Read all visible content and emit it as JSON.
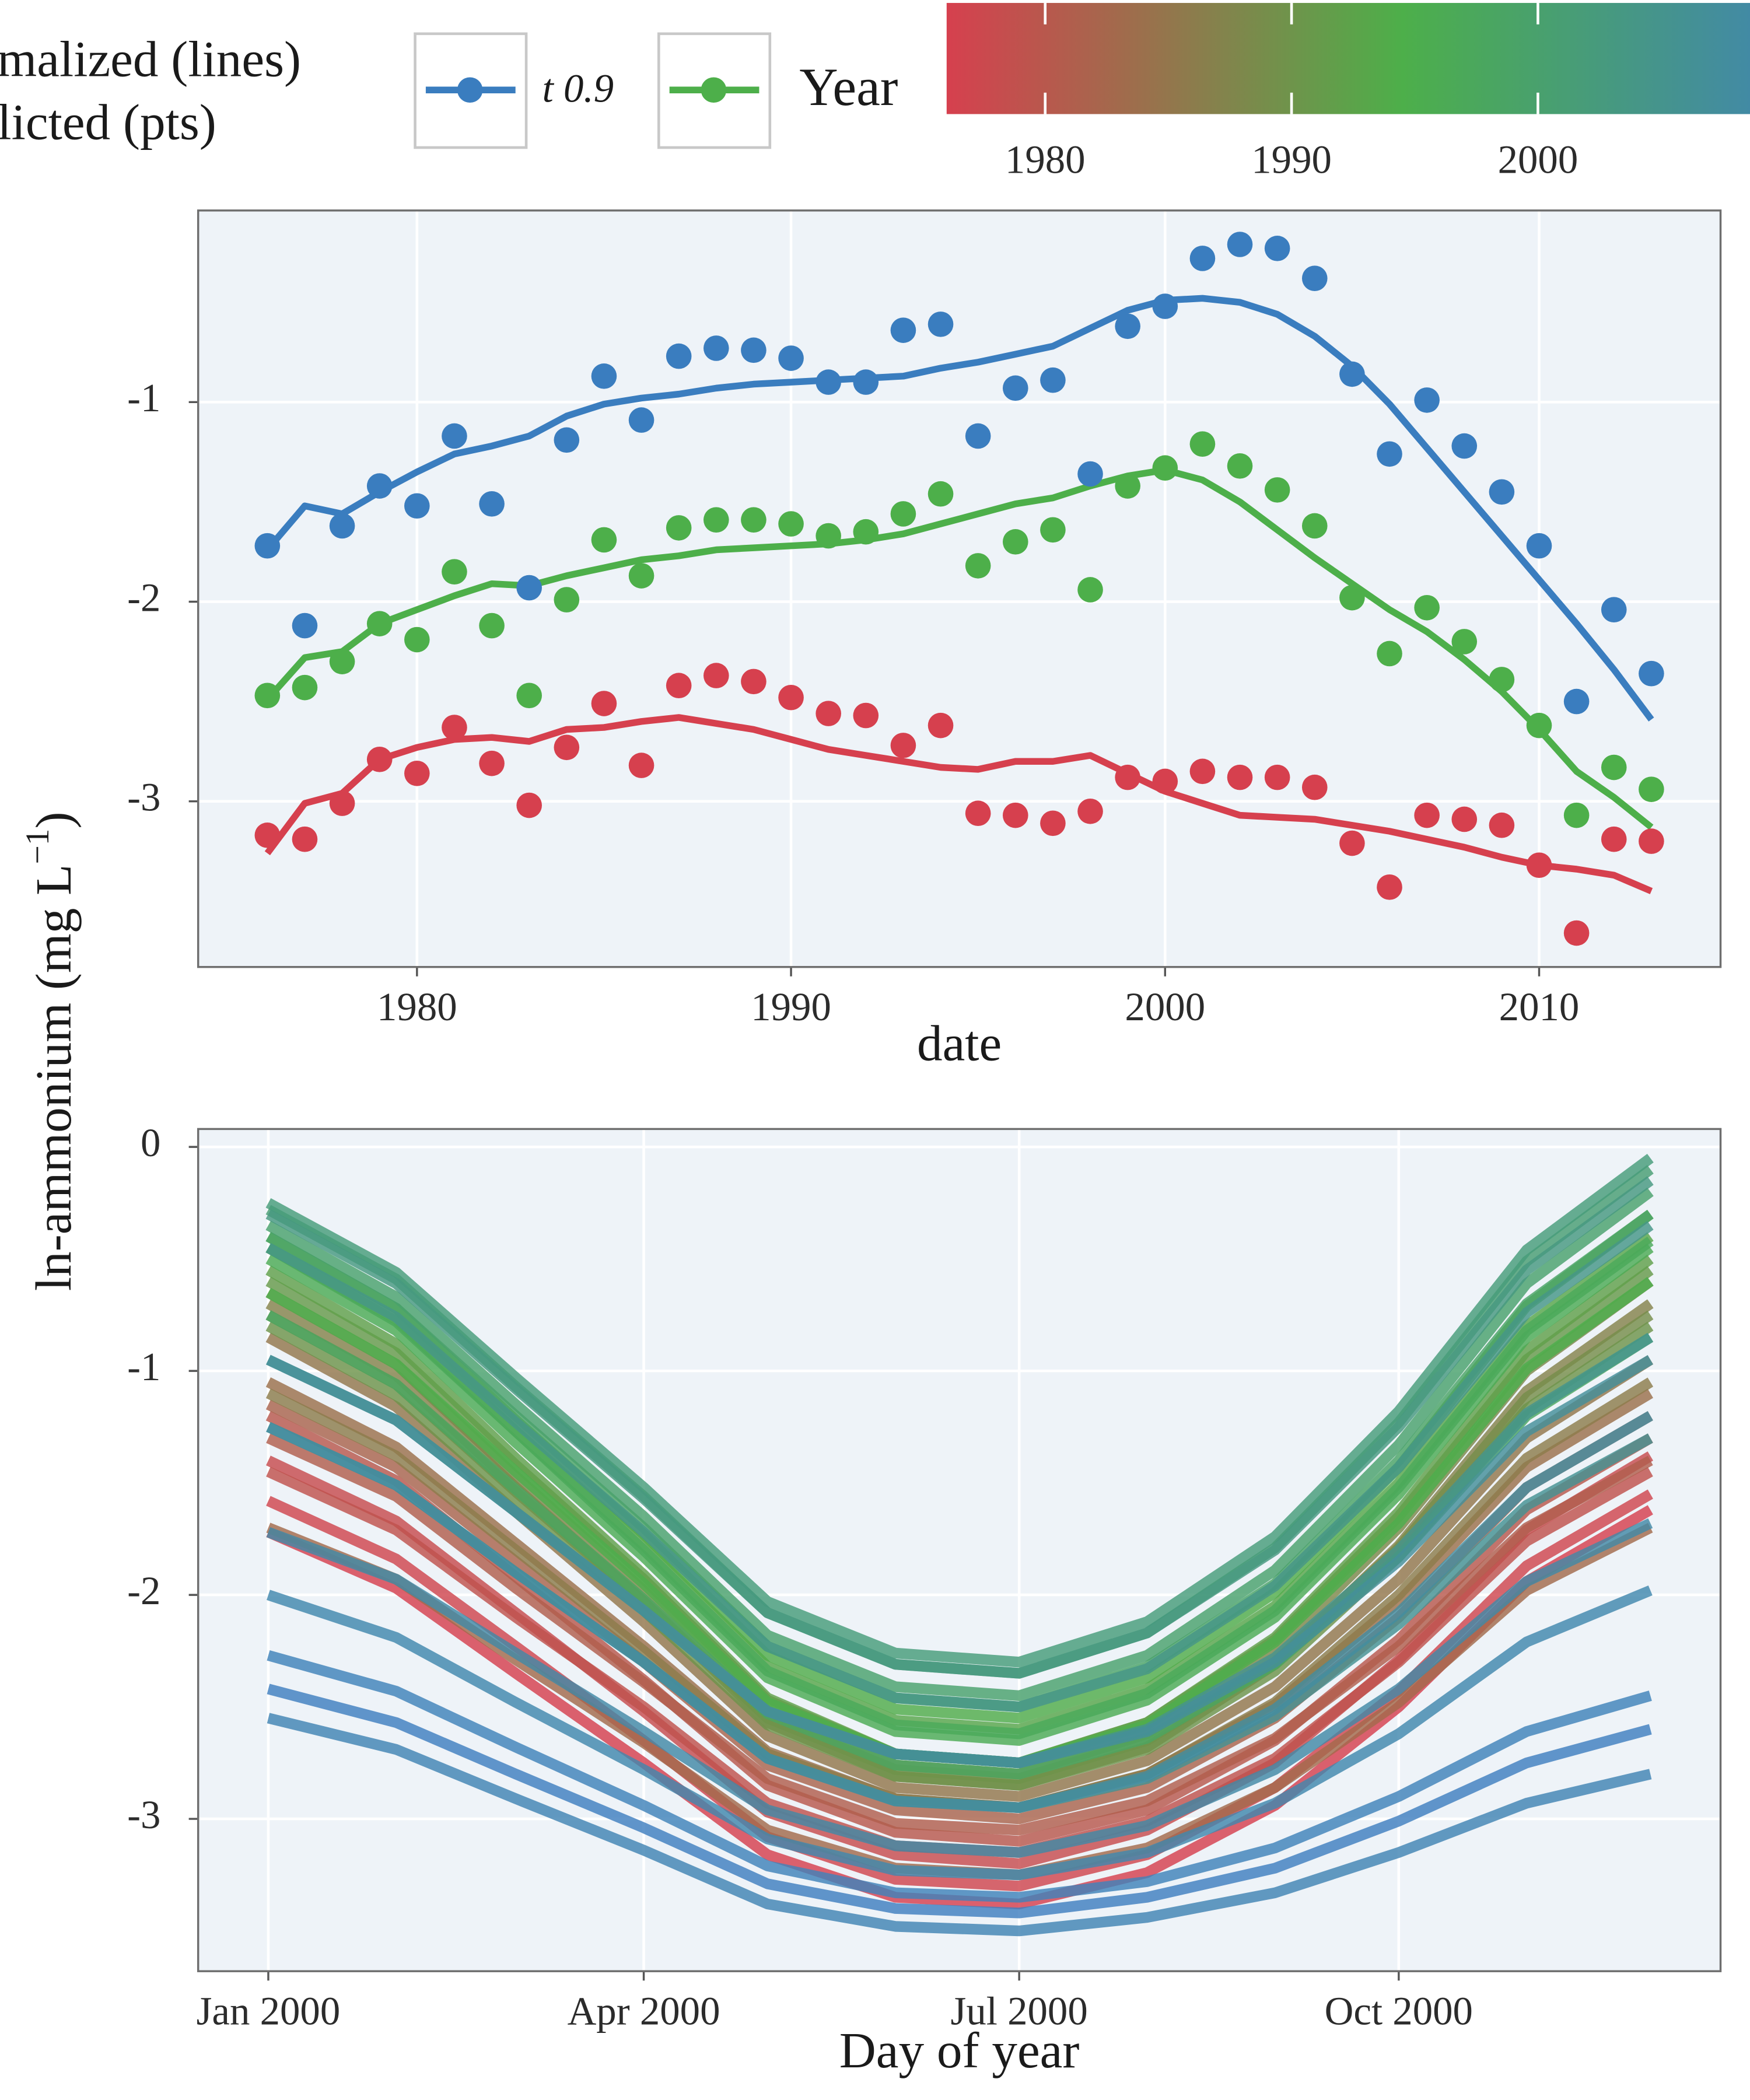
{
  "chart_data": [
    {
      "type": "line",
      "legend": {
        "title": [
          "malized (lines)",
          "licted (pts)"
        ],
        "position": "top"
      },
      "ylabel": {
        "text": "ln-ammonium (mg L",
        "superscript": "−1",
        "close": ")"
      },
      "xlabel": "date",
      "x": [
        1976,
        1977,
        1978,
        1979,
        1980,
        1981,
        1982,
        1983,
        1984,
        1985,
        1986,
        1987,
        1988,
        1989,
        1990,
        1991,
        1992,
        1993,
        1994,
        1995,
        1996,
        1997,
        1998,
        1999,
        2000,
        2001,
        2002,
        2003,
        2004,
        2005,
        2006,
        2007,
        2008,
        2009,
        2010,
        2011,
        2012,
        2013
      ],
      "xlim": [
        1974.15,
        2014.85
      ],
      "xticks": [
        1980,
        1990,
        2000,
        2010
      ],
      "ylim": [
        -3.83,
        -0.04
      ],
      "yticks": [
        -3,
        -2,
        -1
      ],
      "grid": true,
      "series": [
        {
          "name": "t 0.9",
          "color": "#3a7dbf",
          "values": [
            -1.74,
            -1.52,
            -1.56,
            -1.45,
            -1.35,
            -1.26,
            -1.22,
            -1.17,
            -1.07,
            -1.01,
            -0.98,
            -0.96,
            -0.93,
            -0.91,
            -0.9,
            -0.89,
            -0.88,
            -0.87,
            -0.83,
            -0.8,
            -0.76,
            -0.72,
            -0.63,
            -0.54,
            -0.49,
            -0.48,
            -0.5,
            -0.56,
            -0.67,
            -0.82,
            -1.01,
            -1.23,
            -1.45,
            -1.67,
            -1.89,
            -2.11,
            -2.34,
            -2.59
          ],
          "points": [
            -1.72,
            -2.12,
            -1.62,
            -1.42,
            -1.52,
            -1.17,
            -1.51,
            -1.93,
            -1.19,
            -0.87,
            -1.09,
            -0.77,
            -0.73,
            -0.74,
            -0.78,
            -0.9,
            -0.9,
            -0.64,
            -0.61,
            -1.17,
            -0.93,
            -0.89,
            -1.36,
            -0.62,
            -0.52,
            -0.28,
            -0.21,
            -0.23,
            -0.38,
            -0.86,
            -1.26,
            -0.99,
            -1.22,
            -1.45,
            -1.72,
            -2.5,
            -2.04,
            -2.36
          ]
        },
        {
          "name": "Year",
          "color": "#4daf4a",
          "values": [
            -2.49,
            -2.28,
            -2.25,
            -2.11,
            -2.04,
            -1.97,
            -1.91,
            -1.92,
            -1.87,
            -1.83,
            -1.79,
            -1.77,
            -1.74,
            -1.73,
            -1.72,
            -1.71,
            -1.69,
            -1.66,
            -1.61,
            -1.56,
            -1.51,
            -1.48,
            -1.42,
            -1.37,
            -1.34,
            -1.39,
            -1.5,
            -1.64,
            -1.78,
            -1.91,
            -2.04,
            -2.15,
            -2.29,
            -2.45,
            -2.64,
            -2.85,
            -2.98,
            -3.13
          ],
          "points": [
            -2.47,
            -2.43,
            -2.3,
            -2.11,
            -2.19,
            -1.85,
            -2.12,
            -2.47,
            -1.99,
            -1.69,
            -1.87,
            -1.63,
            -1.59,
            -1.59,
            -1.61,
            -1.67,
            -1.65,
            -1.56,
            -1.46,
            -1.82,
            -1.7,
            -1.64,
            -1.94,
            -1.42,
            -1.33,
            -1.21,
            -1.32,
            -1.44,
            -1.62,
            -1.98,
            -2.26,
            -2.03,
            -2.2,
            -2.39,
            -2.62,
            -3.07,
            -2.83,
            -2.94
          ]
        },
        {
          "color": "#d6404e",
          "values": [
            -3.26,
            -3.01,
            -2.96,
            -2.79,
            -2.73,
            -2.69,
            -2.68,
            -2.7,
            -2.64,
            -2.63,
            -2.6,
            -2.58,
            -2.61,
            -2.64,
            -2.69,
            -2.74,
            -2.77,
            -2.8,
            -2.83,
            -2.84,
            -2.8,
            -2.8,
            -2.77,
            -2.86,
            -2.95,
            -3.01,
            -3.07,
            -3.08,
            -3.09,
            -3.12,
            -3.15,
            -3.19,
            -3.23,
            -3.28,
            -3.32,
            -3.34,
            -3.37,
            -3.45
          ],
          "points": [
            -3.17,
            -3.19,
            -3.01,
            -2.79,
            -2.86,
            -2.63,
            -2.81,
            -3.02,
            -2.73,
            -2.51,
            -2.82,
            -2.42,
            -2.37,
            -2.4,
            -2.48,
            -2.56,
            -2.57,
            -2.72,
            -2.62,
            -3.06,
            -3.07,
            -3.11,
            -3.05,
            -2.88,
            -2.9,
            -2.85,
            -2.88,
            -2.88,
            -2.93,
            -3.21,
            -3.43,
            -3.07,
            -3.09,
            -3.12,
            -3.32,
            -3.66,
            -3.19,
            -3.2
          ]
        }
      ]
    },
    {
      "type": "line",
      "xlabel": "Day of year",
      "x": [
        "2000-01",
        "2000-02",
        "2000-03",
        "2000-04",
        "2000-05",
        "2000-06",
        "2000-07",
        "2000-08",
        "2000-09",
        "2000-10",
        "2000-11",
        "2000-12"
      ],
      "xlim": [
        "1999-12-15",
        "2000-12-18"
      ],
      "xticks": [
        {
          "value": "2000-01",
          "label": "Jan 2000"
        },
        {
          "value": "2000-04",
          "label": "Apr 2000"
        },
        {
          "value": "2000-07",
          "label": "Jul 2000"
        },
        {
          "value": "2000-10",
          "label": "Oct 2000"
        }
      ],
      "ylim": [
        -3.68,
        0.08
      ],
      "yticks": [
        0,
        -1,
        -2,
        -3
      ],
      "grid": true,
      "colorbar": {
        "lim": [
          1976,
          2013
        ],
        "ticks": [
          1980,
          1990,
          2000
        ],
        "colors": [
          "#d6404e",
          "#4daf4a",
          "#3f7fc0"
        ]
      },
      "series": [
        {
          "year": 1976,
          "values": [
            -1.72,
            -1.97,
            -2.35,
            -2.75,
            -3.16,
            -3.35,
            -3.38,
            -3.24,
            -2.94,
            -2.5,
            -1.94,
            -1.62
          ]
        },
        {
          "year": 1977,
          "values": [
            -1.58,
            -1.84,
            -2.23,
            -2.65,
            -3.08,
            -3.27,
            -3.3,
            -3.16,
            -2.86,
            -2.43,
            -1.87,
            -1.55
          ]
        },
        {
          "year": 1978,
          "values": [
            -1.4,
            -1.67,
            -2.08,
            -2.52,
            -2.97,
            -3.16,
            -3.2,
            -3.05,
            -2.75,
            -2.29,
            -1.71,
            -1.38
          ]
        },
        {
          "year": 1979,
          "values": [
            -1.45,
            -1.71,
            -2.1,
            -2.5,
            -2.93,
            -3.12,
            -3.15,
            -3.01,
            -2.73,
            -2.3,
            -1.76,
            -1.45
          ]
        },
        {
          "year": 1980,
          "values": [
            -1.2,
            -1.49,
            -1.92,
            -2.38,
            -2.85,
            -3.06,
            -3.1,
            -2.96,
            -2.65,
            -2.2,
            -1.62,
            -1.3
          ]
        },
        {
          "year": 1981,
          "values": [
            -1.3,
            -1.56,
            -1.97,
            -2.39,
            -2.82,
            -3.02,
            -3.05,
            -2.92,
            -2.64,
            -2.23,
            -1.7,
            -1.4
          ]
        },
        {
          "year": 1982,
          "values": [
            -1.15,
            -1.43,
            -1.85,
            -2.3,
            -2.76,
            -2.96,
            -3.0,
            -2.86,
            -2.55,
            -2.1,
            -1.52,
            -1.2
          ]
        },
        {
          "year": 1983,
          "values": [
            -1.7,
            -1.93,
            -2.29,
            -2.66,
            -3.05,
            -3.22,
            -3.25,
            -3.13,
            -2.86,
            -2.48,
            -1.98,
            -1.7
          ]
        },
        {
          "year": 1984,
          "values": [
            -1.05,
            -1.34,
            -1.77,
            -2.23,
            -2.7,
            -2.91,
            -2.95,
            -2.8,
            -2.49,
            -2.03,
            -1.43,
            -1.1
          ]
        },
        {
          "year": 1985,
          "values": [
            -0.85,
            -1.16,
            -1.63,
            -2.12,
            -2.63,
            -2.86,
            -2.9,
            -2.74,
            -2.41,
            -1.93,
            -1.3,
            -0.95
          ]
        },
        {
          "year": 1986,
          "values": [
            -1.1,
            -1.38,
            -1.8,
            -2.25,
            -2.71,
            -2.91,
            -2.95,
            -2.8,
            -2.48,
            -2.0,
            -1.39,
            -1.05
          ]
        },
        {
          "year": 1987,
          "values": [
            -0.7,
            -1.02,
            -1.52,
            -2.03,
            -2.57,
            -2.81,
            -2.85,
            -2.68,
            -2.31,
            -1.78,
            -1.09,
            -0.7
          ]
        },
        {
          "year": 1988,
          "values": [
            -0.65,
            -0.97,
            -1.47,
            -1.98,
            -2.52,
            -2.76,
            -2.8,
            -2.62,
            -2.25,
            -1.7,
            -1.0,
            -0.6
          ]
        },
        {
          "year": 1989,
          "values": [
            -0.75,
            -1.06,
            -1.54,
            -2.03,
            -2.55,
            -2.78,
            -2.82,
            -2.65,
            -2.3,
            -1.79,
            -1.12,
            -0.75
          ]
        },
        {
          "year": 1990,
          "values": [
            -0.8,
            -1.11,
            -1.58,
            -2.07,
            -2.58,
            -2.81,
            -2.85,
            -2.69,
            -2.34,
            -1.83,
            -1.17,
            -0.8
          ]
        },
        {
          "year": 1991,
          "values": [
            -0.6,
            -0.92,
            -1.42,
            -1.93,
            -2.47,
            -2.71,
            -2.75,
            -2.57,
            -2.2,
            -1.65,
            -0.95,
            -0.55
          ]
        },
        {
          "year": 1992,
          "values": [
            -0.55,
            -0.88,
            -1.39,
            -1.91,
            -2.46,
            -2.71,
            -2.75,
            -2.57,
            -2.19,
            -1.63,
            -0.91,
            -0.5
          ]
        },
        {
          "year": 1993,
          "values": [
            -0.45,
            -0.77,
            -1.27,
            -1.78,
            -2.32,
            -2.56,
            -2.6,
            -2.42,
            -2.05,
            -1.5,
            -0.8,
            -0.4
          ]
        },
        {
          "year": 1994,
          "values": [
            -0.4,
            -0.72,
            -1.22,
            -1.73,
            -2.27,
            -2.51,
            -2.55,
            -2.37,
            -1.99,
            -1.43,
            -0.71,
            -0.3
          ]
        },
        {
          "year": 1995,
          "values": [
            -0.65,
            -0.97,
            -1.45,
            -1.95,
            -2.48,
            -2.71,
            -2.75,
            -2.58,
            -2.21,
            -1.68,
            -0.99,
            -0.6
          ]
        },
        {
          "year": 1996,
          "values": [
            -0.5,
            -0.82,
            -1.32,
            -1.83,
            -2.37,
            -2.61,
            -2.65,
            -2.47,
            -2.1,
            -1.55,
            -0.85,
            -0.45
          ]
        },
        {
          "year": 1997,
          "values": [
            -0.45,
            -0.78,
            -1.27,
            -1.8,
            -2.34,
            -2.58,
            -2.62,
            -2.44,
            -2.07,
            -1.52,
            -0.82,
            -0.42
          ]
        },
        {
          "year": 1998,
          "values": [
            -0.75,
            -1.06,
            -1.53,
            -2.02,
            -2.53,
            -2.76,
            -2.8,
            -2.64,
            -2.31,
            -1.83,
            -1.2,
            -0.85
          ]
        },
        {
          "year": 1999,
          "values": [
            -0.4,
            -0.72,
            -1.2,
            -1.7,
            -2.23,
            -2.46,
            -2.5,
            -2.32,
            -1.95,
            -1.4,
            -0.7,
            -0.3
          ]
        },
        {
          "year": 2000,
          "values": [
            -0.35,
            -0.67,
            -1.15,
            -1.65,
            -2.18,
            -2.41,
            -2.45,
            -2.27,
            -1.89,
            -1.33,
            -0.61,
            -0.2
          ]
        },
        {
          "year": 2001,
          "values": [
            -0.28,
            -0.59,
            -1.07,
            -1.56,
            -2.08,
            -2.31,
            -2.35,
            -2.17,
            -1.79,
            -1.23,
            -0.51,
            -0.1
          ]
        },
        {
          "year": 2002,
          "values": [
            -0.25,
            -0.56,
            -1.03,
            -1.52,
            -2.03,
            -2.26,
            -2.3,
            -2.12,
            -1.74,
            -1.18,
            -0.46,
            -0.05
          ]
        },
        {
          "year": 2003,
          "values": [
            -0.3,
            -0.61,
            -1.08,
            -1.57,
            -2.08,
            -2.31,
            -2.35,
            -2.17,
            -1.8,
            -1.25,
            -0.55,
            -0.15
          ]
        },
        {
          "year": 2004,
          "values": [
            -0.45,
            -0.76,
            -1.23,
            -1.72,
            -2.23,
            -2.46,
            -2.5,
            -2.33,
            -1.96,
            -1.43,
            -0.74,
            -0.35
          ]
        },
        {
          "year": 2005,
          "values": [
            -0.95,
            -1.22,
            -1.63,
            -2.07,
            -2.52,
            -2.71,
            -2.75,
            -2.6,
            -2.28,
            -1.8,
            -1.19,
            -0.85
          ]
        },
        {
          "year": 2006,
          "values": [
            -1.25,
            -1.51,
            -1.9,
            -2.3,
            -2.73,
            -2.92,
            -2.95,
            -2.82,
            -2.54,
            -2.13,
            -1.6,
            -1.3
          ]
        },
        {
          "year": 2007,
          "values": [
            -0.95,
            -1.22,
            -1.63,
            -2.07,
            -2.52,
            -2.71,
            -2.75,
            -2.61,
            -2.3,
            -1.85,
            -1.27,
            -0.95
          ]
        },
        {
          "year": 2008,
          "values": [
            -1.25,
            -1.51,
            -1.9,
            -2.3,
            -2.73,
            -2.92,
            -2.95,
            -2.81,
            -2.51,
            -2.08,
            -1.52,
            -1.2
          ]
        },
        {
          "year": 2009,
          "values": [
            -1.72,
            -1.93,
            -2.26,
            -2.61,
            -2.96,
            -3.12,
            -3.15,
            -3.03,
            -2.78,
            -2.42,
            -1.94,
            -1.68
          ]
        },
        {
          "year": 2010,
          "values": [
            -2.0,
            -2.19,
            -2.48,
            -2.78,
            -3.09,
            -3.23,
            -3.25,
            -3.15,
            -2.93,
            -2.62,
            -2.21,
            -1.98
          ]
        },
        {
          "year": 2011,
          "values": [
            -2.55,
            -2.69,
            -2.91,
            -3.14,
            -3.38,
            -3.48,
            -3.5,
            -3.44,
            -3.33,
            -3.15,
            -2.93,
            -2.8
          ]
        },
        {
          "year": 2012,
          "values": [
            -2.27,
            -2.43,
            -2.68,
            -2.94,
            -3.21,
            -3.33,
            -3.35,
            -3.28,
            -3.13,
            -2.9,
            -2.61,
            -2.45
          ]
        },
        {
          "year": 2013,
          "values": [
            -2.42,
            -2.57,
            -2.8,
            -3.04,
            -3.29,
            -3.4,
            -3.42,
            -3.35,
            -3.22,
            -3.01,
            -2.75,
            -2.6
          ]
        }
      ]
    }
  ]
}
